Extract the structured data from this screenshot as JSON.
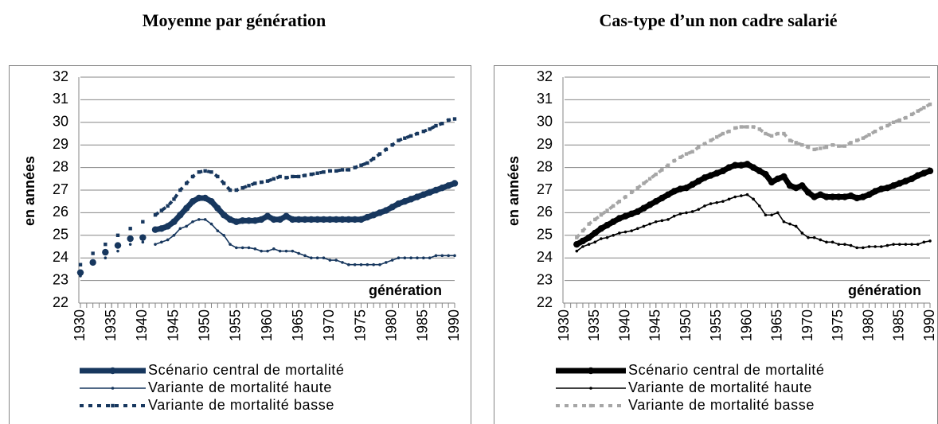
{
  "chart_data": [
    {
      "type": "line",
      "title": "Moyenne par génération",
      "ylabel": "en années",
      "xlabel": "génération",
      "xlim": [
        1930,
        1990
      ],
      "ylim": [
        22,
        32
      ],
      "xticks": [
        1930,
        1935,
        1940,
        1945,
        1950,
        1955,
        1960,
        1965,
        1970,
        1975,
        1980,
        1985,
        1990
      ],
      "yticks": [
        22,
        23,
        24,
        25,
        26,
        27,
        28,
        29,
        30,
        31,
        32
      ],
      "grid": true,
      "x": [
        1930,
        1931,
        1932,
        1933,
        1934,
        1935,
        1936,
        1937,
        1938,
        1939,
        1940,
        1941,
        1942,
        1943,
        1944,
        1945,
        1946,
        1947,
        1948,
        1949,
        1950,
        1951,
        1952,
        1953,
        1954,
        1955,
        1956,
        1957,
        1958,
        1959,
        1960,
        1961,
        1962,
        1963,
        1964,
        1965,
        1966,
        1967,
        1968,
        1969,
        1970,
        1971,
        1972,
        1973,
        1974,
        1975,
        1976,
        1977,
        1978,
        1979,
        1980,
        1981,
        1982,
        1983,
        1984,
        1985,
        1986,
        1987,
        1988,
        1989,
        1990
      ],
      "series": [
        {
          "name": "Scénario central de mortalité",
          "color": "#17375e",
          "values": [
            23.35,
            null,
            23.8,
            null,
            24.25,
            null,
            24.55,
            null,
            24.85,
            null,
            24.9,
            null,
            25.25,
            25.3,
            25.4,
            25.6,
            25.9,
            26.2,
            26.5,
            26.65,
            26.65,
            26.5,
            26.2,
            25.9,
            25.7,
            25.6,
            25.65,
            25.65,
            25.65,
            25.7,
            25.85,
            25.7,
            25.7,
            25.85,
            25.7,
            25.7,
            25.7,
            25.7,
            25.7,
            25.7,
            25.7,
            25.7,
            25.7,
            25.7,
            25.7,
            25.7,
            25.8,
            25.9,
            26.0,
            26.1,
            26.25,
            26.4,
            26.5,
            26.6,
            26.7,
            26.8,
            26.9,
            27.0,
            27.1,
            27.2,
            27.3
          ]
        },
        {
          "name": "Variante de mortalité haute",
          "color": "#17375e",
          "values": [
            23.2,
            null,
            23.8,
            null,
            24.0,
            null,
            24.3,
            null,
            24.6,
            null,
            24.7,
            null,
            24.6,
            24.7,
            24.8,
            25.0,
            25.3,
            25.4,
            25.6,
            25.7,
            25.7,
            25.5,
            25.2,
            25.0,
            24.6,
            24.45,
            24.45,
            24.45,
            24.4,
            24.3,
            24.3,
            24.4,
            24.3,
            24.3,
            24.3,
            24.2,
            24.1,
            24.0,
            24.0,
            24.0,
            23.9,
            23.9,
            23.8,
            23.7,
            23.7,
            23.7,
            23.7,
            23.7,
            23.7,
            23.8,
            23.9,
            24.0,
            24.0,
            24.0,
            24.0,
            24.0,
            24.0,
            24.1,
            24.1,
            24.1,
            24.1
          ]
        },
        {
          "name": "Variante de mortalité basse",
          "color": "#17375e",
          "values": [
            23.7,
            null,
            24.2,
            null,
            24.6,
            null,
            25.0,
            null,
            25.3,
            null,
            25.6,
            null,
            25.9,
            26.1,
            26.3,
            26.6,
            27.0,
            27.3,
            27.6,
            27.8,
            27.85,
            27.8,
            27.6,
            27.3,
            27.0,
            27.0,
            27.1,
            27.2,
            27.3,
            27.35,
            27.4,
            27.5,
            27.6,
            27.55,
            27.6,
            27.6,
            27.65,
            27.7,
            27.75,
            27.8,
            27.85,
            27.85,
            27.9,
            27.9,
            28.0,
            28.1,
            28.2,
            28.4,
            28.6,
            28.8,
            29.0,
            29.2,
            29.3,
            29.4,
            29.5,
            29.6,
            29.7,
            29.85,
            29.95,
            30.1,
            30.15
          ]
        }
      ]
    },
    {
      "type": "line",
      "title": "Cas-type d’un non cadre salarié",
      "ylabel": "en années",
      "xlabel": "génération",
      "xlim": [
        1930,
        1990
      ],
      "ylim": [
        22,
        32
      ],
      "xticks": [
        1930,
        1935,
        1940,
        1945,
        1950,
        1955,
        1960,
        1965,
        1970,
        1975,
        1980,
        1985,
        1990
      ],
      "yticks": [
        22,
        23,
        24,
        25,
        26,
        27,
        28,
        29,
        30,
        31,
        32
      ],
      "grid": true,
      "x": [
        1932,
        1933,
        1934,
        1935,
        1936,
        1937,
        1938,
        1939,
        1940,
        1941,
        1942,
        1943,
        1944,
        1945,
        1946,
        1947,
        1948,
        1949,
        1950,
        1951,
        1952,
        1953,
        1954,
        1955,
        1956,
        1957,
        1958,
        1959,
        1960,
        1961,
        1962,
        1963,
        1964,
        1965,
        1966,
        1967,
        1968,
        1969,
        1970,
        1971,
        1972,
        1973,
        1974,
        1975,
        1976,
        1977,
        1978,
        1979,
        1980,
        1981,
        1982,
        1983,
        1984,
        1985,
        1986,
        1987,
        1988,
        1989,
        1990
      ],
      "series": [
        {
          "name": "Scénario central de mortalité",
          "color": "#000000",
          "values": [
            24.6,
            24.75,
            24.9,
            25.1,
            25.3,
            25.45,
            25.6,
            25.75,
            25.85,
            25.95,
            26.05,
            26.2,
            26.35,
            26.5,
            26.65,
            26.8,
            26.95,
            27.05,
            27.1,
            27.25,
            27.4,
            27.55,
            27.65,
            27.75,
            27.85,
            28.0,
            28.1,
            28.1,
            28.15,
            28.0,
            27.85,
            27.7,
            27.35,
            27.5,
            27.6,
            27.2,
            27.1,
            27.2,
            26.9,
            26.7,
            26.8,
            26.7,
            26.7,
            26.7,
            26.7,
            26.75,
            26.65,
            26.7,
            26.8,
            26.95,
            27.05,
            27.1,
            27.2,
            27.3,
            27.4,
            27.5,
            27.65,
            27.75,
            27.85
          ]
        },
        {
          "name": "Variante de mortalité haute",
          "color": "#000000",
          "values": [
            24.3,
            24.5,
            24.6,
            24.7,
            24.85,
            24.9,
            25.0,
            25.1,
            25.15,
            25.2,
            25.3,
            25.4,
            25.5,
            25.6,
            25.65,
            25.7,
            25.85,
            25.95,
            26.0,
            26.05,
            26.15,
            26.3,
            26.4,
            26.45,
            26.5,
            26.6,
            26.7,
            26.75,
            26.8,
            26.6,
            26.3,
            25.9,
            25.9,
            26.0,
            25.6,
            25.5,
            25.4,
            25.1,
            24.9,
            24.9,
            24.8,
            24.7,
            24.7,
            24.6,
            24.6,
            24.55,
            24.45,
            24.45,
            24.5,
            24.5,
            24.5,
            24.55,
            24.6,
            24.6,
            24.6,
            24.6,
            24.6,
            24.7,
            24.75
          ]
        },
        {
          "name": "Variante de mortalité basse",
          "color": "#a6a6a6",
          "values": [
            24.9,
            25.2,
            25.5,
            25.7,
            25.9,
            26.1,
            26.3,
            26.5,
            26.7,
            26.9,
            27.1,
            27.3,
            27.5,
            27.7,
            27.9,
            28.1,
            28.3,
            28.45,
            28.6,
            28.7,
            28.9,
            29.05,
            29.2,
            29.35,
            29.5,
            29.6,
            29.75,
            29.8,
            29.8,
            29.8,
            29.7,
            29.5,
            29.4,
            29.5,
            29.5,
            29.2,
            29.1,
            29.0,
            28.9,
            28.8,
            28.85,
            28.9,
            29.0,
            28.95,
            28.95,
            29.1,
            29.2,
            29.3,
            29.45,
            29.6,
            29.75,
            29.85,
            30.0,
            30.1,
            30.2,
            30.35,
            30.5,
            30.65,
            30.8
          ]
        }
      ]
    }
  ]
}
